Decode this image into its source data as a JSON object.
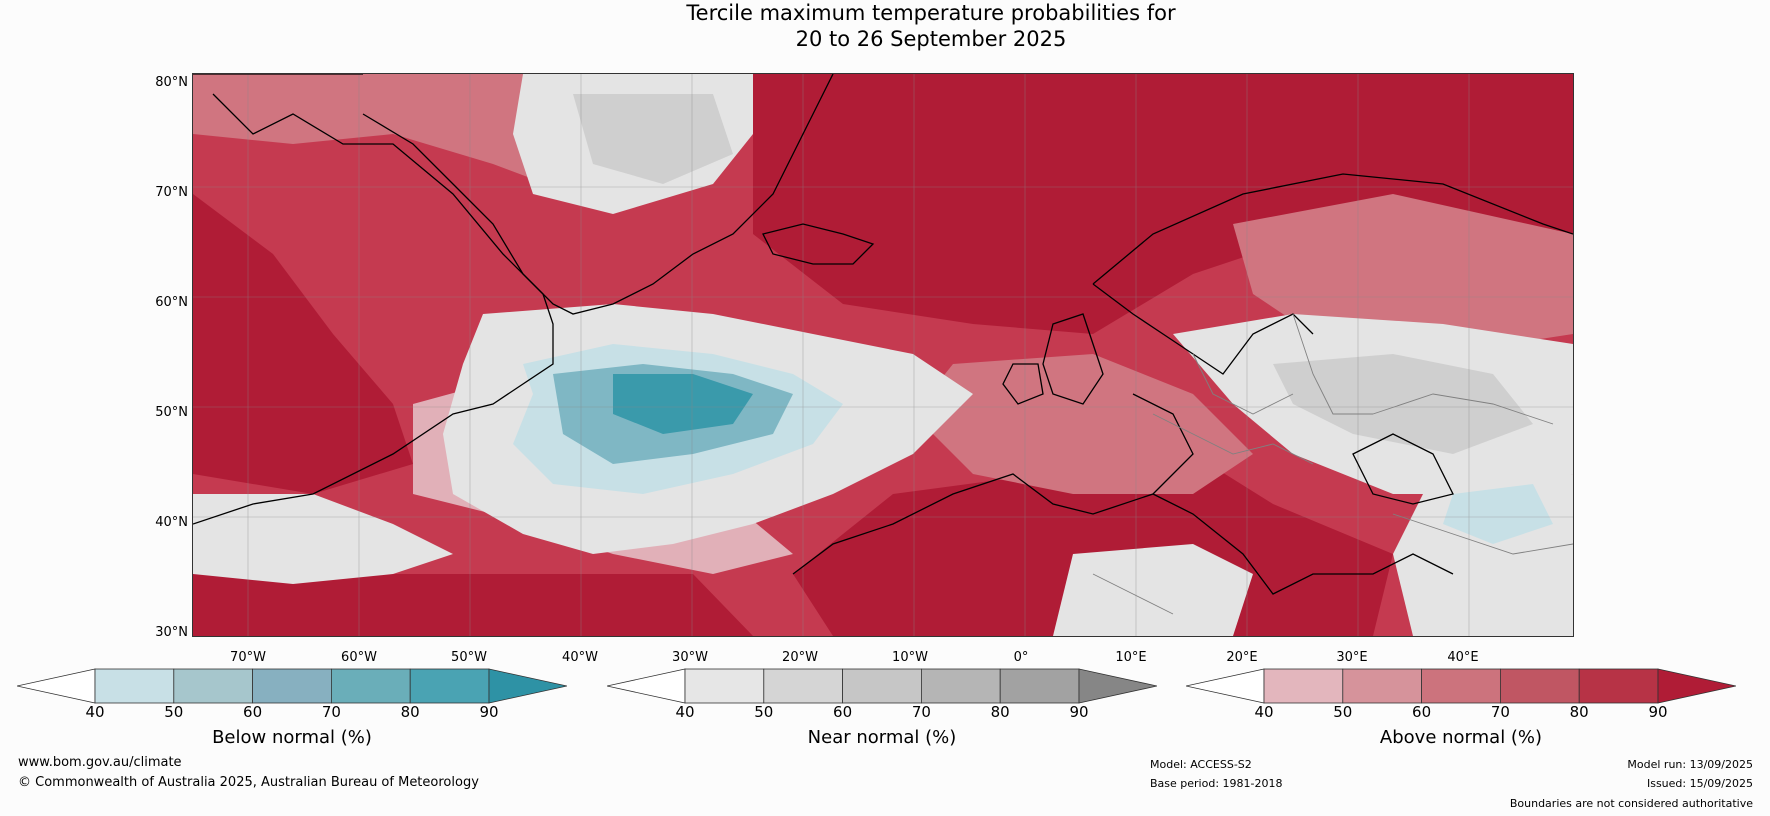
{
  "title": {
    "line1": "Tercile maximum temperature probabilities for",
    "line2": "20 to 26 September 2025"
  },
  "map": {
    "lat_labels": [
      "80°N",
      "70°N",
      "60°N",
      "50°N",
      "40°N",
      "30°N"
    ],
    "lon_labels": [
      "70°W",
      "60°W",
      "50°W",
      "40°W",
      "30°W",
      "20°W",
      "10°W",
      "0°",
      "10°E",
      "20°E",
      "30°E",
      "40°E"
    ],
    "colors": {
      "ocean_red_dark": "#b01c36",
      "ocean_red": "#c53a50",
      "red_mid": "#d07580",
      "red_light": "#e1b0b8",
      "grey_light": "#e4e4e4",
      "grey_mid": "#cfcfcf",
      "blue_light": "#c7e0e6",
      "blue_mid": "#7fb7c4",
      "blue_dark": "#3a9aab",
      "coast": "#000000",
      "border": "#808080"
    }
  },
  "colorbars": [
    {
      "name": "below",
      "title": "Below normal (%)",
      "ticks": [
        "40",
        "50",
        "60",
        "70",
        "80",
        "90"
      ],
      "colors": [
        "#ffffff",
        "#c8e0e6",
        "#a6c6cc",
        "#87b0c0",
        "#6aaeb9",
        "#4aa3b3",
        "#2e92a5"
      ]
    },
    {
      "name": "near",
      "title": "Near normal (%)",
      "ticks": [
        "40",
        "50",
        "60",
        "70",
        "80",
        "90"
      ],
      "colors": [
        "#ffffff",
        "#e6e6e6",
        "#d5d5d5",
        "#c6c6c6",
        "#b5b5b5",
        "#a2a2a2",
        "#868686"
      ]
    },
    {
      "name": "above",
      "title": "Above normal (%)",
      "ticks": [
        "40",
        "50",
        "60",
        "70",
        "80",
        "90"
      ],
      "colors": [
        "#ffffff",
        "#e3b6bd",
        "#d6939b",
        "#cc737d",
        "#c05663",
        "#b73346",
        "#b01c36"
      ]
    }
  ],
  "footer": {
    "website": "www.bom.gov.au/climate",
    "copyright": "© Commonwealth of Australia 2025, Australian Bureau of Meteorology",
    "model": "Model: ACCESS-S2",
    "base_period": "Base period: 1981-2018",
    "model_run": "Model run: 13/09/2025",
    "issued": "Issued: 15/09/2025",
    "disclaimer": "Boundaries are not considered authoritative"
  }
}
